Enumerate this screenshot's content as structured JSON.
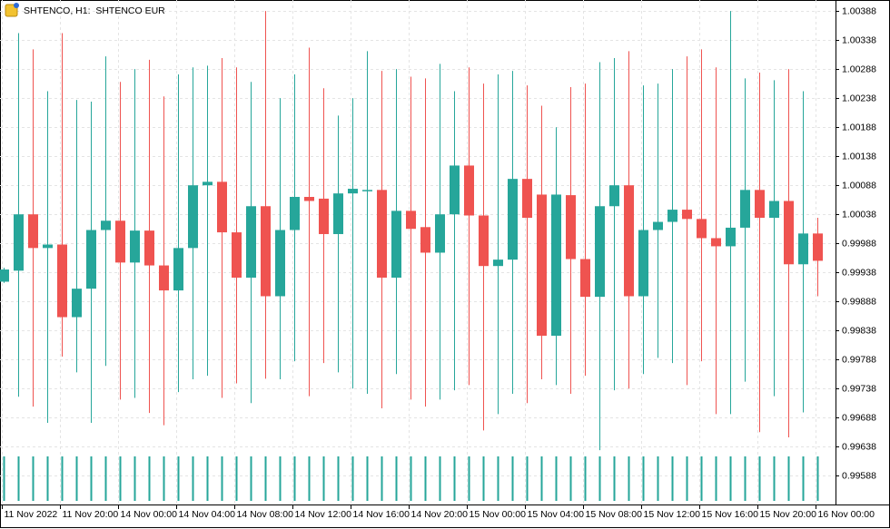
{
  "chart_data": {
    "type": "candlestick",
    "title": "SHTENCO, H1:  SHTENCO EUR",
    "categories": [
      "11 Nov 2022",
      null,
      null,
      null,
      "11 Nov 20:00",
      null,
      null,
      null,
      "14 Nov 00:00",
      null,
      null,
      null,
      "14 Nov 04:00",
      null,
      null,
      null,
      "14 Nov 08:00",
      null,
      null,
      null,
      "14 Nov 12:00",
      null,
      null,
      null,
      "14 Nov 16:00",
      null,
      null,
      null,
      "14 Nov 20:00",
      null,
      null,
      null,
      "15 Nov 00:00",
      null,
      null,
      null,
      "15 Nov 04:00",
      null,
      null,
      null,
      "15 Nov 08:00",
      null,
      null,
      null,
      "15 Nov 12:00",
      null,
      null,
      null,
      "15 Nov 16:00",
      null,
      null,
      null,
      "15 Nov 20:00",
      null,
      null,
      null,
      "16 Nov 00:00"
    ],
    "open": [
      0.99922,
      0.99941,
      1.00038,
      0.9998,
      0.99986,
      0.99861,
      0.9991,
      1.00011,
      1.00027,
      0.99955,
      1.0001,
      0.9995,
      0.99907,
      0.9998,
      1.00088,
      1.00094,
      1.00007,
      0.99929,
      1.00052,
      0.99897,
      1.00011,
      1.00068,
      1.00065,
      1.00004,
      1.00074,
      1.00079,
      1.0008,
      0.99929,
      1.00044,
      1.00016,
      0.99972,
      1.00038,
      1.00122,
      1.00036,
      0.99949,
      0.9996,
      1.00099,
      1.00072,
      0.99829,
      1.00071,
      0.99961,
      0.99896,
      1.00052,
      1.00088,
      0.99897,
      1.00011,
      1.00025,
      1.00046,
      1.0003,
      0.99997,
      0.99983,
      1.00015,
      1.0008,
      1.00032,
      1.00061,
      0.99952,
      1.00005
    ],
    "high": [
      0.99946,
      1.0035,
      1.00322,
      1.0025,
      1.0035,
      1.00235,
      1.00232,
      1.0031,
      1.00266,
      1.00288,
      1.00304,
      1.00241,
      1.00279,
      1.00291,
      1.00294,
      1.00307,
      1.00291,
      1.00266,
      1.00388,
      1.00238,
      1.00279,
      1.00325,
      1.00255,
      1.00208,
      1.00238,
      1.00319,
      1.00285,
      1.00288,
      1.00275,
      1.00272,
      1.00297,
      1.0025,
      1.00291,
      1.00263,
      1.00279,
      1.00285,
      1.0026,
      1.00225,
      1.00188,
      1.00257,
      1.00263,
      1.003,
      1.00307,
      1.00319,
      1.0026,
      1.00263,
      1.00288,
      1.0031,
      1.00322,
      1.00291,
      1.00388,
      1.00272,
      1.00282,
      1.00269,
      1.00288,
      1.0025,
      1.00032
    ],
    "low": [
      0.9992,
      0.99724,
      0.99707,
      0.99679,
      0.99793,
      0.99766,
      0.99679,
      0.99777,
      0.99719,
      0.99722,
      0.99696,
      0.99675,
      0.99732,
      0.99754,
      0.9976,
      0.99722,
      0.99747,
      0.99713,
      0.99755,
      0.99754,
      0.99785,
      0.99725,
      0.99782,
      0.99766,
      0.99738,
      0.99729,
      0.99704,
      0.99763,
      0.99719,
      0.99707,
      0.99719,
      0.99735,
      0.99744,
      0.99666,
      0.99694,
      0.99729,
      0.99713,
      0.99754,
      0.99744,
      0.99729,
      0.9976,
      0.99632,
      0.99735,
      0.99738,
      0.99763,
      0.99791,
      0.99782,
      0.99744,
      0.99785,
      0.99694,
      0.99694,
      0.9975,
      0.99663,
      0.99725,
      0.99654,
      0.99697,
      0.99897
    ],
    "close": [
      0.99943,
      1.00038,
      0.9998,
      0.99986,
      0.99861,
      0.9991,
      1.00011,
      1.00027,
      0.99955,
      1.0001,
      0.9995,
      0.99907,
      0.9998,
      1.00088,
      1.00094,
      1.00007,
      0.99929,
      1.00052,
      0.99897,
      1.00011,
      1.00068,
      1.00061,
      1.00004,
      1.00074,
      1.00082,
      1.0008,
      0.99929,
      1.00044,
      1.00013,
      0.99972,
      1.00038,
      1.00122,
      1.00036,
      0.99949,
      0.9996,
      1.00099,
      1.00032,
      0.99829,
      1.00072,
      0.99961,
      0.99896,
      1.00052,
      1.00088,
      0.99897,
      1.00011,
      1.00025,
      1.00046,
      1.0003,
      0.99997,
      0.99983,
      1.00015,
      1.0008,
      1.00032,
      1.00061,
      0.99952,
      1.00005,
      0.99958
    ],
    "volume": [
      1,
      1,
      1,
      1,
      1,
      1,
      1,
      1,
      1,
      1,
      1,
      1,
      1,
      1,
      1,
      1,
      1,
      1,
      1,
      1,
      1,
      1,
      1,
      1,
      1,
      1,
      1,
      1,
      1,
      1,
      1,
      1,
      1,
      1,
      1,
      1,
      1,
      1,
      1,
      1,
      1,
      1,
      1,
      1,
      1,
      1,
      1,
      1,
      1,
      1,
      1,
      1,
      1,
      1,
      1,
      1,
      1
    ],
    "up_color": "#26a69a",
    "down_color": "#ef5350",
    "volume_color": "#26a69a",
    "ylim": [
      0.9954,
      1.00407
    ],
    "yticks": [
      1.00388,
      1.00338,
      1.00288,
      1.00238,
      1.00188,
      1.00138,
      1.00088,
      1.00038,
      0.99988,
      0.99938,
      0.99888,
      0.99838,
      0.99788,
      0.99738,
      0.99688,
      0.99638,
      0.99588
    ],
    "grid": true
  }
}
